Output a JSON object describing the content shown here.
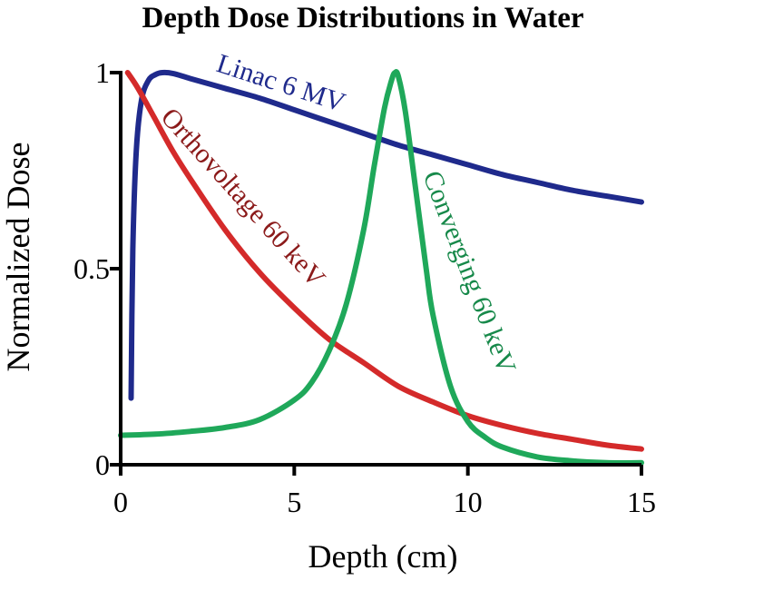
{
  "chart_data": {
    "type": "line",
    "title": "Depth Dose Distributions in Water",
    "xlabel": "Depth (cm)",
    "ylabel": "Normalized Dose",
    "xlim": [
      0,
      15
    ],
    "ylim": [
      0,
      1
    ],
    "x_ticks": [
      0,
      5,
      10,
      15
    ],
    "x_tick_labels": [
      "0",
      "5",
      "10",
      "15"
    ],
    "y_ticks": [
      0,
      0.5,
      1
    ],
    "y_tick_labels": [
      "0",
      "0.5",
      "1"
    ],
    "grid": false,
    "series": [
      {
        "name": "Linac 6 MV",
        "label": "Linac 6 MV",
        "color": "#1f2a8c",
        "x": [
          0.3,
          0.35,
          0.45,
          0.6,
          0.8,
          1.0,
          1.2,
          1.5,
          2,
          3,
          4,
          5,
          6,
          7,
          8,
          9,
          10,
          11,
          12,
          13,
          14,
          15
        ],
        "y": [
          0.17,
          0.55,
          0.8,
          0.93,
          0.98,
          0.995,
          1.0,
          0.998,
          0.985,
          0.96,
          0.935,
          0.905,
          0.875,
          0.845,
          0.815,
          0.79,
          0.765,
          0.74,
          0.72,
          0.7,
          0.685,
          0.67
        ]
      },
      {
        "name": "Orthovoltage 60 keV",
        "label": "Orthovoltage 60 keV",
        "color": "#d42a2a",
        "x": [
          0.2,
          0.5,
          1,
          1.5,
          2,
          3,
          4,
          5,
          6,
          7,
          8,
          9,
          10,
          11,
          12,
          13,
          14,
          15
        ],
        "y": [
          1.0,
          0.96,
          0.88,
          0.8,
          0.73,
          0.6,
          0.49,
          0.4,
          0.32,
          0.26,
          0.2,
          0.16,
          0.125,
          0.1,
          0.08,
          0.065,
          0.05,
          0.04
        ]
      },
      {
        "name": "Converging 60 keV",
        "label": "Converging 60 keV",
        "color": "#1fa85a",
        "x": [
          0,
          1,
          2,
          3,
          4,
          5,
          5.5,
          6,
          6.5,
          7,
          7.3,
          7.6,
          7.8,
          7.9,
          8.0,
          8.2,
          8.5,
          8.8,
          9,
          9.5,
          10,
          10.5,
          11,
          12,
          13,
          14,
          15
        ],
        "y": [
          0.075,
          0.078,
          0.085,
          0.095,
          0.115,
          0.165,
          0.21,
          0.29,
          0.41,
          0.6,
          0.76,
          0.91,
          0.98,
          1.0,
          0.99,
          0.9,
          0.7,
          0.5,
          0.38,
          0.2,
          0.11,
          0.07,
          0.045,
          0.02,
          0.01,
          0.005,
          0.005
        ]
      }
    ]
  }
}
